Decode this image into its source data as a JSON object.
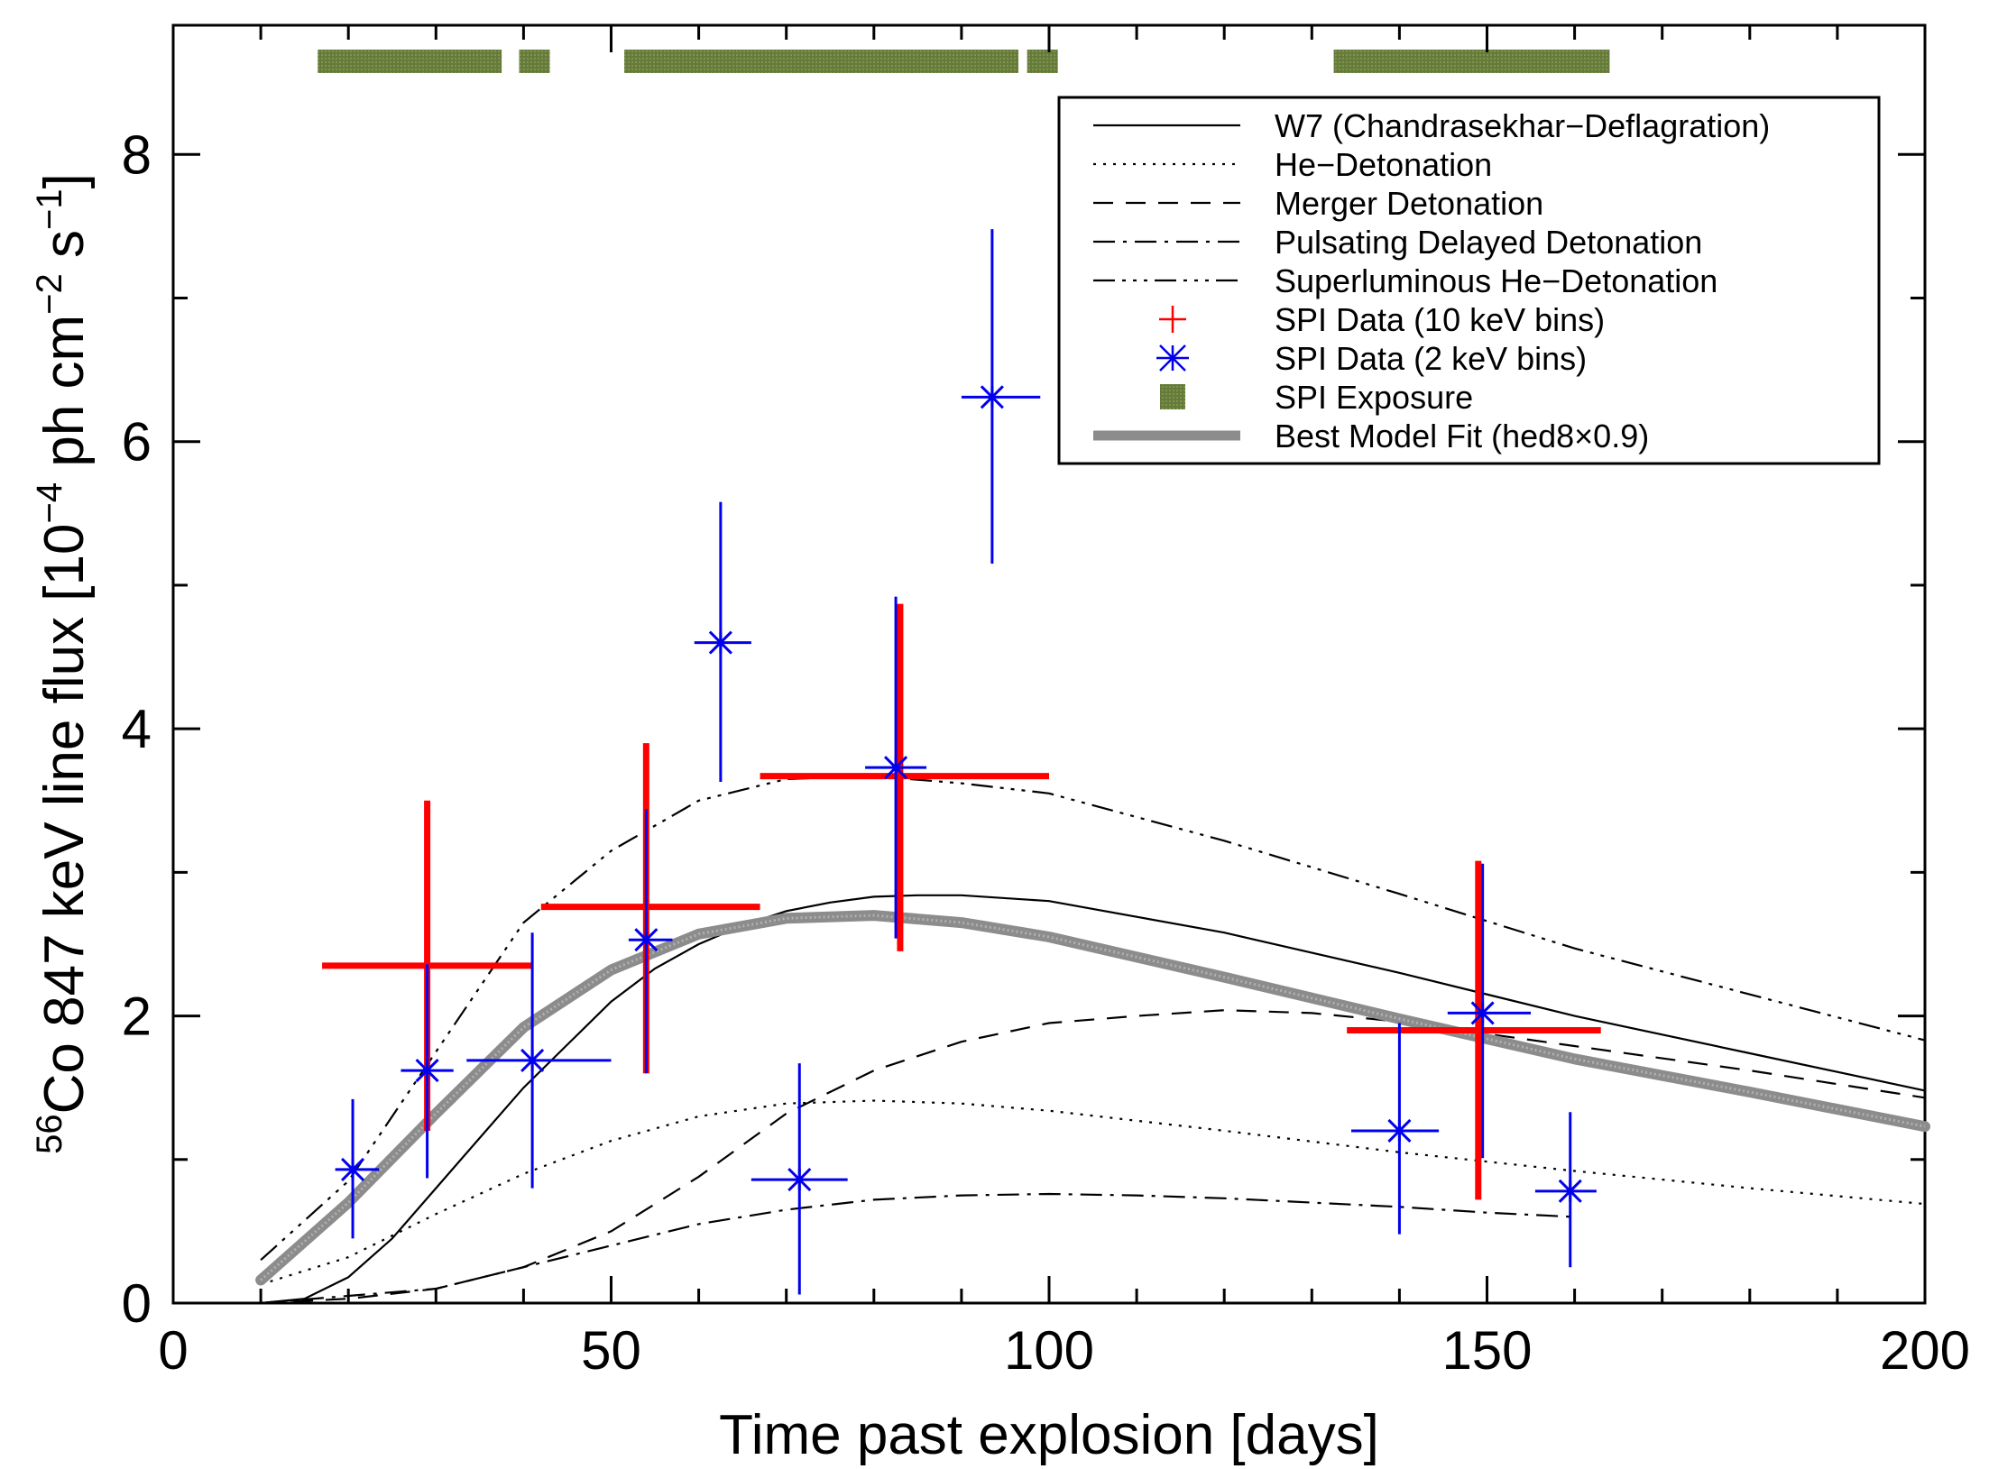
{
  "chart_data": {
    "type": "scatter",
    "xlabel": "Time past explosion [days]",
    "ylabel": {
      "prefix_sup": "56",
      "main": "Co 847 keV line flux [10",
      "exp1": "−4",
      "mid": " ph cm",
      "exp2": "−2",
      "mid2": " s",
      "exp3": "−1",
      "end": "]"
    },
    "xlim": [
      0,
      200
    ],
    "ylim": [
      0,
      8.9
    ],
    "xticks": [
      0,
      50,
      100,
      150,
      200
    ],
    "xtick_labels": [
      "0",
      "50",
      "100",
      "150",
      "200"
    ],
    "yticks": [
      0,
      2,
      4,
      6,
      8
    ],
    "ytick_labels": [
      "0",
      "2",
      "4",
      "6",
      "8"
    ],
    "grid": false,
    "legend_position": "top-right",
    "legend": [
      {
        "label": "W7 (Chandrasekhar−Deflagration)",
        "style": "solid"
      },
      {
        "label": "He−Detonation",
        "style": "dotted"
      },
      {
        "label": "Merger Detonation",
        "style": "dashed"
      },
      {
        "label": "Pulsating Delayed Detonation",
        "style": "dashdot"
      },
      {
        "label": "Superluminous He−Detonation",
        "style": "dashdotdot"
      },
      {
        "label": "SPI Data (10 keV bins)",
        "style": "plus",
        "color": "#ff0000"
      },
      {
        "label": "SPI Data (2 keV bins)",
        "style": "asterisk",
        "color": "#0000ee"
      },
      {
        "label": "SPI Exposure",
        "style": "patch",
        "color": "#667a3a"
      },
      {
        "label": "Best Model Fit (hed8×0.9)",
        "style": "thickgray",
        "color": "#8c8c8c"
      }
    ],
    "series": [
      {
        "name": "W7 (Chandrasekhar−Deflagration)",
        "style": "solid",
        "x": [
          10,
          15,
          20,
          25,
          30,
          35,
          40,
          45,
          50,
          55,
          60,
          65,
          70,
          75,
          80,
          85,
          90,
          100,
          120,
          140,
          160,
          180,
          200
        ],
        "y": [
          0.0,
          0.03,
          0.18,
          0.45,
          0.8,
          1.15,
          1.5,
          1.8,
          2.1,
          2.33,
          2.5,
          2.63,
          2.73,
          2.79,
          2.83,
          2.84,
          2.84,
          2.8,
          2.58,
          2.3,
          2.0,
          1.74,
          1.48
        ]
      },
      {
        "name": "He−Detonation",
        "style": "dotted",
        "x": [
          10,
          20,
          30,
          40,
          50,
          60,
          70,
          80,
          90,
          100,
          120,
          140,
          160,
          180,
          200
        ],
        "y": [
          0.13,
          0.32,
          0.62,
          0.9,
          1.13,
          1.3,
          1.39,
          1.41,
          1.39,
          1.34,
          1.2,
          1.05,
          0.92,
          0.8,
          0.69
        ]
      },
      {
        "name": "Merger Detonation",
        "style": "dashed",
        "x": [
          10,
          20,
          30,
          40,
          50,
          60,
          70,
          80,
          90,
          100,
          110,
          120,
          130,
          140,
          160,
          180,
          200
        ],
        "y": [
          0.0,
          0.03,
          0.1,
          0.25,
          0.5,
          0.88,
          1.32,
          1.62,
          1.82,
          1.95,
          2.0,
          2.04,
          2.02,
          1.96,
          1.79,
          1.62,
          1.43
        ]
      },
      {
        "name": "Pulsating Delayed Detonation",
        "style": "dashdot",
        "x": [
          10,
          20,
          30,
          40,
          50,
          60,
          70,
          80,
          90,
          100,
          110,
          120,
          130,
          140,
          150,
          160
        ],
        "y": [
          0.0,
          0.05,
          0.1,
          0.25,
          0.4,
          0.55,
          0.65,
          0.72,
          0.75,
          0.76,
          0.75,
          0.73,
          0.7,
          0.67,
          0.63,
          0.6
        ]
      },
      {
        "name": "Superluminous He−Detonation",
        "style": "dashdotdot",
        "x": [
          10,
          20,
          30,
          40,
          50,
          60,
          70,
          80,
          90,
          100,
          120,
          140,
          160,
          180,
          200
        ],
        "y": [
          0.3,
          0.85,
          1.75,
          2.65,
          3.15,
          3.5,
          3.65,
          3.67,
          3.62,
          3.55,
          3.22,
          2.85,
          2.47,
          2.15,
          1.83
        ]
      },
      {
        "name": "Best Model Fit (hed8×0.9)",
        "style": "thickgray",
        "x": [
          10,
          20,
          30,
          40,
          50,
          60,
          70,
          80,
          90,
          100,
          120,
          140,
          160,
          180,
          200
        ],
        "y": [
          0.16,
          0.7,
          1.32,
          1.92,
          2.32,
          2.57,
          2.68,
          2.7,
          2.65,
          2.55,
          2.27,
          1.98,
          1.7,
          1.47,
          1.23
        ]
      }
    ],
    "spi_10kev": [
      {
        "x": 29,
        "y": 2.35,
        "xerr": [
          17,
          41
        ],
        "yerr": [
          1.2,
          3.5
        ]
      },
      {
        "x": 54,
        "y": 2.76,
        "xerr": [
          42,
          67
        ],
        "yerr": [
          1.6,
          3.9
        ]
      },
      {
        "x": 83,
        "y": 3.67,
        "xerr": [
          67,
          100
        ],
        "yerr": [
          2.45,
          4.87
        ]
      },
      {
        "x": 149,
        "y": 1.9,
        "xerr": [
          134,
          163
        ],
        "yerr": [
          0.72,
          3.08
        ]
      }
    ],
    "spi_2kev": [
      {
        "x": 20.5,
        "y": 0.93,
        "xerr": [
          18.5,
          23.5
        ],
        "yerr": [
          0.45,
          1.42
        ]
      },
      {
        "x": 29,
        "y": 1.62,
        "xerr": [
          26,
          32
        ],
        "yerr": [
          0.87,
          2.36
        ]
      },
      {
        "x": 41,
        "y": 1.69,
        "xerr": [
          33.5,
          50
        ],
        "yerr": [
          0.8,
          2.58
        ]
      },
      {
        "x": 54,
        "y": 2.53,
        "xerr": [
          52,
          57
        ],
        "yerr": [
          1.6,
          3.44
        ]
      },
      {
        "x": 62.5,
        "y": 4.6,
        "xerr": [
          59.5,
          66
        ],
        "yerr": [
          3.63,
          5.58
        ]
      },
      {
        "x": 71.5,
        "y": 0.86,
        "xerr": [
          66,
          77
        ],
        "yerr": [
          0.06,
          1.67
        ]
      },
      {
        "x": 82.5,
        "y": 3.73,
        "xerr": [
          79,
          86
        ],
        "yerr": [
          2.54,
          4.92
        ]
      },
      {
        "x": 93.5,
        "y": 6.31,
        "xerr": [
          90,
          99
        ],
        "yerr": [
          5.15,
          7.48
        ]
      },
      {
        "x": 140,
        "y": 1.2,
        "xerr": [
          134.5,
          144.5
        ],
        "yerr": [
          0.48,
          1.95
        ]
      },
      {
        "x": 149.5,
        "y": 2.02,
        "xerr": [
          145.5,
          155
        ],
        "yerr": [
          1.01,
          3.06
        ]
      },
      {
        "x": 159.5,
        "y": 0.78,
        "xerr": [
          155.5,
          162.5
        ],
        "yerr": [
          0.25,
          1.33
        ]
      }
    ],
    "exposure_intervals": [
      [
        16.5,
        37.5
      ],
      [
        39.5,
        43
      ],
      [
        51.5,
        96.5
      ],
      [
        97.5,
        101
      ],
      [
        132.5,
        164
      ]
    ]
  }
}
